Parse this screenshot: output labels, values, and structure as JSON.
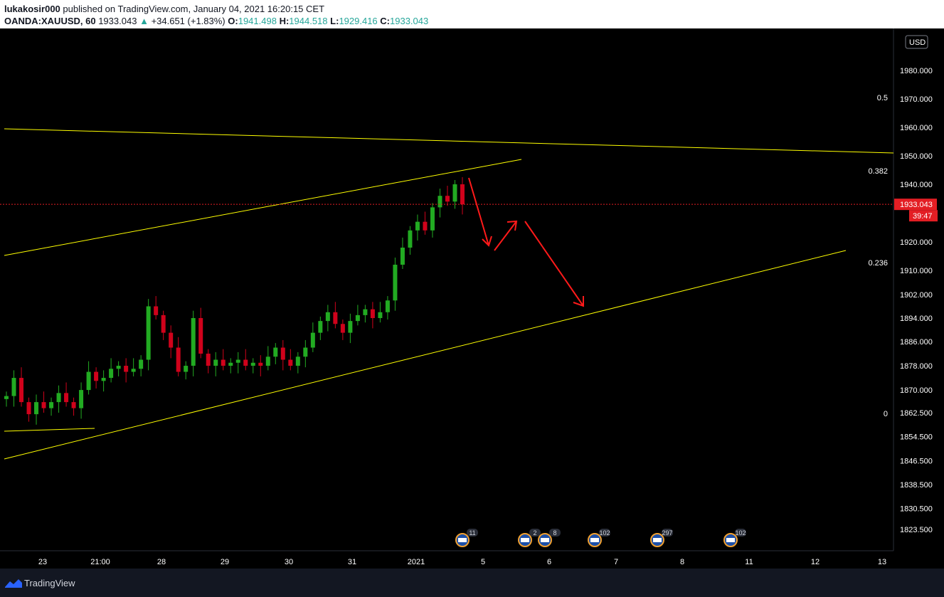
{
  "header": {
    "author": "lukakosir000",
    "published": "published on TradingView.com, January 04, 2021 16:20:15 CET",
    "symbol": "OANDA:XAUUSD, 60",
    "last": "1933.043",
    "change": "+34.651 (+1.83%)",
    "o_label": "O:",
    "o": "1941.498",
    "h_label": "H:",
    "h": "1944.518",
    "l_label": "L:",
    "l": "1929.416",
    "c_label": "C:",
    "c": "1933.043"
  },
  "footer": {
    "brand": "TradingView"
  },
  "chart_data": {
    "type": "candlestick",
    "currency": "USD",
    "y_ticks": [
      1823.5,
      1830.5,
      1838.5,
      1846.5,
      1854.5,
      1862.5,
      1870.0,
      1878.0,
      1886.0,
      1894.0,
      1902.0,
      1910.0,
      1920.0,
      1940.0,
      1950.0,
      1960.0,
      1970.0,
      1980.0
    ],
    "y_tick_labels": [
      "1823.500",
      "1830.500",
      "1838.500",
      "1846.500",
      "1854.500",
      "1862.500",
      "1870.000",
      "1878.000",
      "1886.000",
      "1894.000",
      "1902.000",
      "1910.000",
      "1920.000",
      "1940.000",
      "1950.000",
      "1960.000",
      "1970.000",
      "1980.000"
    ],
    "x_tick_labels": [
      "23",
      "21:00",
      "28",
      "29",
      "30",
      "31",
      "2021",
      "5",
      "6",
      "7",
      "8",
      "11",
      "12",
      "13"
    ],
    "current_price": "1933.043",
    "countdown": "39:47",
    "fib_levels": [
      {
        "label": "0.5",
        "value": 1970.0
      },
      {
        "label": "0.382",
        "value": 1945.0
      },
      {
        "label": "0.236",
        "value": 1911.0
      },
      {
        "label": "0",
        "value": 1862.5
      }
    ],
    "events": [
      "11",
      "2",
      "8",
      "102",
      "297",
      "102"
    ],
    "close_path": [
      {
        "x": "23",
        "y": 1868
      },
      {
        "x": "23",
        "y": 1874
      },
      {
        "x": "23",
        "y": 1866
      },
      {
        "x": "23",
        "y": 1862
      },
      {
        "x": "23",
        "y": 1866
      },
      {
        "x": "23",
        "y": 1864
      },
      {
        "x": "23",
        "y": 1866
      },
      {
        "x": "23",
        "y": 1869
      },
      {
        "x": "23",
        "y": 1866
      },
      {
        "x": "21:00",
        "y": 1864
      },
      {
        "x": "21:00",
        "y": 1870
      },
      {
        "x": "21:00",
        "y": 1876
      },
      {
        "x": "21:00",
        "y": 1873
      },
      {
        "x": "21:00",
        "y": 1874
      },
      {
        "x": "21:00",
        "y": 1877
      },
      {
        "x": "28",
        "y": 1878
      },
      {
        "x": "28",
        "y": 1876
      },
      {
        "x": "28",
        "y": 1877
      },
      {
        "x": "28",
        "y": 1880
      },
      {
        "x": "28",
        "y": 1898
      },
      {
        "x": "28",
        "y": 1895
      },
      {
        "x": "28",
        "y": 1889
      },
      {
        "x": "28",
        "y": 1884
      },
      {
        "x": "28",
        "y": 1876
      },
      {
        "x": "29",
        "y": 1878
      },
      {
        "x": "29",
        "y": 1894
      },
      {
        "x": "29",
        "y": 1882
      },
      {
        "x": "29",
        "y": 1878
      },
      {
        "x": "29",
        "y": 1880
      },
      {
        "x": "29",
        "y": 1878
      },
      {
        "x": "29",
        "y": 1879
      },
      {
        "x": "29",
        "y": 1880
      },
      {
        "x": "30",
        "y": 1878
      },
      {
        "x": "30",
        "y": 1879
      },
      {
        "x": "30",
        "y": 1878
      },
      {
        "x": "30",
        "y": 1881
      },
      {
        "x": "30",
        "y": 1884
      },
      {
        "x": "30",
        "y": 1880
      },
      {
        "x": "30",
        "y": 1878
      },
      {
        "x": "30",
        "y": 1881
      },
      {
        "x": "31",
        "y": 1884
      },
      {
        "x": "31",
        "y": 1889
      },
      {
        "x": "31",
        "y": 1893
      },
      {
        "x": "31",
        "y": 1896
      },
      {
        "x": "31",
        "y": 1892
      },
      {
        "x": "31",
        "y": 1889
      },
      {
        "x": "31",
        "y": 1893
      },
      {
        "x": "31",
        "y": 1895
      },
      {
        "x": "31",
        "y": 1897
      },
      {
        "x": "31",
        "y": 1894
      },
      {
        "x": "31",
        "y": 1896
      },
      {
        "x": "2021",
        "y": 1900
      },
      {
        "x": "2021",
        "y": 1912
      },
      {
        "x": "2021",
        "y": 1918
      },
      {
        "x": "2021",
        "y": 1924
      },
      {
        "x": "2021",
        "y": 1927
      },
      {
        "x": "2021",
        "y": 1924
      },
      {
        "x": "2021",
        "y": 1932
      },
      {
        "x": "2021",
        "y": 1936
      },
      {
        "x": "2021",
        "y": 1934
      },
      {
        "x": "2021",
        "y": 1940
      },
      {
        "x": "2021",
        "y": 1933.043
      }
    ]
  },
  "colors": {
    "background": "#000000",
    "up": "#22ab22",
    "down": "#d0021b",
    "trendline": "#ffff00",
    "arrow": "#ff1a1a",
    "price_label_bg": "#e31e24",
    "axis_text": "#ffffff"
  }
}
